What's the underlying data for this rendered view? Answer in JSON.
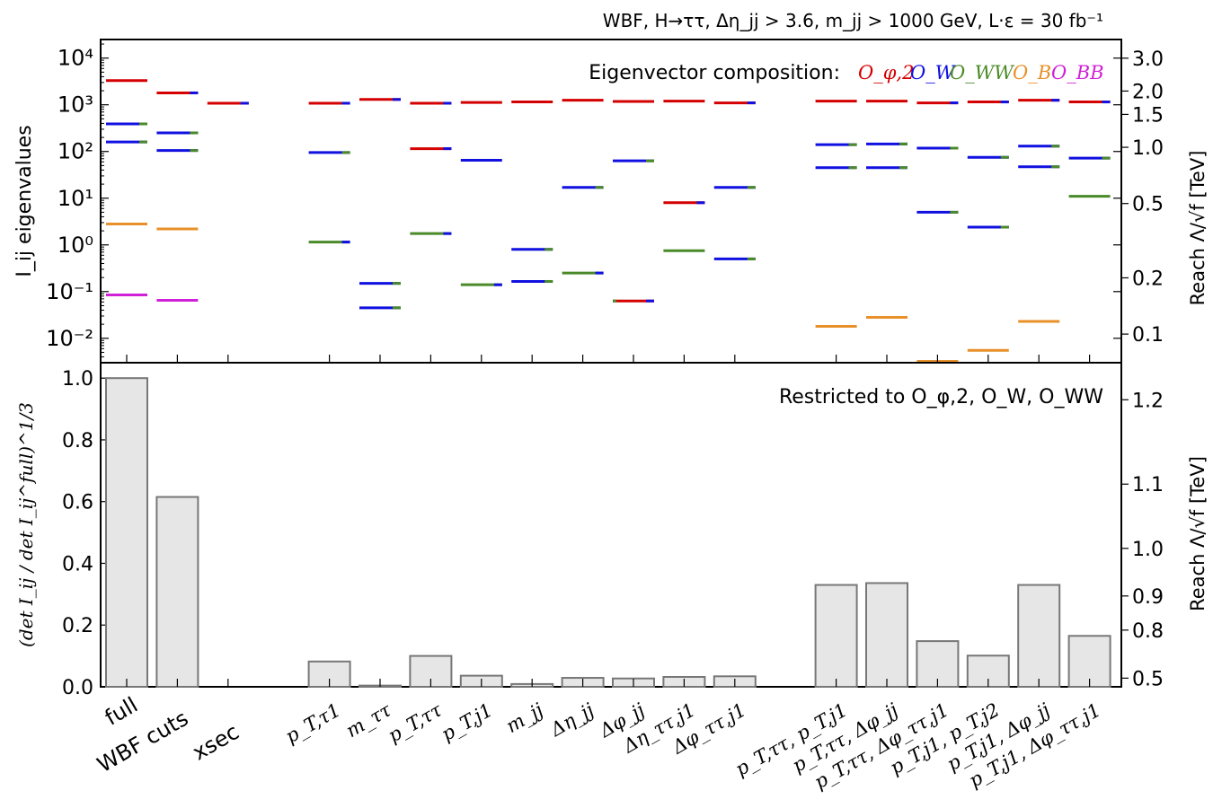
{
  "title": "WBF, H→ττ, Δη_jj > 3.6, m_jj > 1000 GeV, L·ε = 30 fb⁻¹",
  "colors": {
    "phi2": "#d40000",
    "W": "#1010e0",
    "WW": "#4a8a28",
    "B": "#e8902a",
    "BB": "#d020d8",
    "bar_fill": "#e6e6e6",
    "bar_edge": "#777777"
  },
  "chart_data": [
    {
      "type": "scatter",
      "name": "eigenvalues",
      "ylabel": "I_ij eigenvalues",
      "y2label": "Reach Λ/√f [TeV]",
      "yscale": "log",
      "ylim": [
        0.003,
        25000
      ],
      "ytick_labels": [
        "10⁻²",
        "10⁻¹",
        "10⁰",
        "10¹",
        "10²",
        "10³",
        "10⁴"
      ],
      "y2_ticks": [
        "3.0",
        "2.0",
        "1.5",
        "1.0",
        "0.5",
        "0.2",
        "0.1"
      ],
      "legend_text": "Eigenvector composition:",
      "legend_entries": [
        "O_φ,2",
        "O_W",
        "O_WW",
        "O_B",
        "O_BB"
      ],
      "legend_placement": "top-right",
      "categories": [
        "full",
        "WBF cuts",
        "xsec",
        "p_T,τ1",
        "m_ττ",
        "p_T,ττ",
        "p_T,j1",
        "m_jj",
        "Δη_jj",
        "Δφ_jj",
        "Δη_ττ,j1",
        "Δφ_ττ,j1",
        "p_T,ττ, p_T,j1",
        "p_T,ττ, Δφ_jj",
        "p_T,ττ, Δφ_ττ,j1",
        "p_T,j1, p_T,j2",
        "p_T,j1, Δφ_jj",
        "p_T,j1, Δφ_ττ,j1"
      ],
      "x_positions": [
        0,
        1,
        2,
        4,
        5,
        6,
        7,
        8,
        9,
        10,
        11,
        12,
        14,
        15,
        16,
        17,
        18,
        19
      ],
      "eigenvalues": [
        [
          {
            "v": 3300,
            "c": [
              "phi2"
            ]
          },
          {
            "v": 390,
            "c": [
              "W",
              "WW"
            ]
          },
          {
            "v": 160,
            "c": [
              "W",
              "WW"
            ]
          },
          {
            "v": 2.8,
            "c": [
              "B"
            ]
          },
          {
            "v": 0.085,
            "c": [
              "BB"
            ]
          }
        ],
        [
          {
            "v": 1800,
            "c": [
              "phi2",
              "W"
            ]
          },
          {
            "v": 250,
            "c": [
              "W",
              "WW"
            ]
          },
          {
            "v": 105,
            "c": [
              "W",
              "WW"
            ]
          },
          {
            "v": 2.2,
            "c": [
              "B"
            ]
          },
          {
            "v": 0.065,
            "c": [
              "BB"
            ]
          }
        ],
        [
          {
            "v": 1080,
            "c": [
              "phi2",
              "W"
            ]
          }
        ],
        [
          {
            "v": 1080,
            "c": [
              "phi2",
              "W"
            ]
          },
          {
            "v": 95,
            "c": [
              "W",
              "WW"
            ]
          },
          {
            "v": 1.15,
            "c": [
              "WW",
              "W"
            ]
          }
        ],
        [
          {
            "v": 1300,
            "c": [
              "phi2",
              "W"
            ]
          },
          {
            "v": 0.15,
            "c": [
              "W",
              "WW"
            ]
          },
          {
            "v": 0.045,
            "c": [
              "W",
              "WW"
            ]
          }
        ],
        [
          {
            "v": 1080,
            "c": [
              "phi2",
              "W"
            ]
          },
          {
            "v": 115,
            "c": [
              "phi2",
              "W"
            ]
          },
          {
            "v": 1.75,
            "c": [
              "WW",
              "W"
            ]
          }
        ],
        [
          {
            "v": 1120,
            "c": [
              "phi2"
            ]
          },
          {
            "v": 65,
            "c": [
              "W"
            ]
          },
          {
            "v": 0.14,
            "c": [
              "WW",
              "W"
            ]
          }
        ],
        [
          {
            "v": 1150,
            "c": [
              "phi2"
            ]
          },
          {
            "v": 0.8,
            "c": [
              "W",
              "WW"
            ]
          },
          {
            "v": 0.165,
            "c": [
              "W",
              "WW"
            ]
          }
        ],
        [
          {
            "v": 1250,
            "c": [
              "phi2"
            ]
          },
          {
            "v": 17,
            "c": [
              "W",
              "WW"
            ]
          },
          {
            "v": 0.25,
            "c": [
              "WW",
              "W"
            ]
          }
        ],
        [
          {
            "v": 1180,
            "c": [
              "phi2"
            ]
          },
          {
            "v": 63,
            "c": [
              "W",
              "WW"
            ]
          },
          {
            "v": 0.063,
            "c": [
              "phi2",
              "W",
              "WW"
            ]
          }
        ],
        [
          {
            "v": 1200,
            "c": [
              "phi2"
            ]
          },
          {
            "v": 8,
            "c": [
              "phi2",
              "W"
            ]
          },
          {
            "v": 0.75,
            "c": [
              "WW"
            ]
          }
        ],
        [
          {
            "v": 1100,
            "c": [
              "phi2",
              "W"
            ]
          },
          {
            "v": 17,
            "c": [
              "W",
              "WW"
            ]
          },
          {
            "v": 0.5,
            "c": [
              "W",
              "WW"
            ]
          }
        ],
        [
          {
            "v": 1200,
            "c": [
              "phi2"
            ]
          },
          {
            "v": 140,
            "c": [
              "W",
              "WW"
            ]
          },
          {
            "v": 45,
            "c": [
              "W",
              "WW"
            ]
          },
          {
            "v": 0.018,
            "c": [
              "B"
            ]
          }
        ],
        [
          {
            "v": 1200,
            "c": [
              "phi2"
            ]
          },
          {
            "v": 145,
            "c": [
              "W",
              "WW"
            ]
          },
          {
            "v": 45,
            "c": [
              "W",
              "WW"
            ]
          },
          {
            "v": 0.028,
            "c": [
              "B"
            ]
          }
        ],
        [
          {
            "v": 1100,
            "c": [
              "phi2",
              "W"
            ]
          },
          {
            "v": 118,
            "c": [
              "W",
              "WW"
            ]
          },
          {
            "v": 5,
            "c": [
              "W",
              "WW"
            ]
          },
          {
            "v": 0.0032,
            "c": [
              "B"
            ]
          }
        ],
        [
          {
            "v": 1150,
            "c": [
              "phi2",
              "W"
            ]
          },
          {
            "v": 75,
            "c": [
              "W",
              "WW"
            ]
          },
          {
            "v": 2.4,
            "c": [
              "W",
              "WW"
            ]
          },
          {
            "v": 0.0055,
            "c": [
              "B"
            ]
          }
        ],
        [
          {
            "v": 1250,
            "c": [
              "phi2",
              "W"
            ]
          },
          {
            "v": 130,
            "c": [
              "W",
              "WW"
            ]
          },
          {
            "v": 47,
            "c": [
              "W",
              "WW"
            ]
          },
          {
            "v": 0.023,
            "c": [
              "B"
            ]
          }
        ],
        [
          {
            "v": 1150,
            "c": [
              "phi2",
              "W"
            ]
          },
          {
            "v": 72,
            "c": [
              "W",
              "WW"
            ]
          },
          {
            "v": 11,
            "c": [
              "WW"
            ]
          }
        ]
      ]
    },
    {
      "type": "bar",
      "name": "restricted",
      "ylabel": "(det I_ij / det I_ij^full)^1/3",
      "y2label": "Reach Λ/√f [TeV]",
      "annotation": "Restricted to O_φ,2, O_W, O_WW",
      "ylim": [
        0,
        1.05
      ],
      "yticks": [
        0.0,
        0.2,
        0.4,
        0.6,
        0.8,
        1.0
      ],
      "ytick_labels": [
        "0.0",
        "0.2",
        "0.4",
        "0.6",
        "0.8",
        "1.0"
      ],
      "y2_ticks": [
        "1.2",
        "1.1",
        "1.0",
        "0.9",
        "0.8",
        "0.5"
      ],
      "categories": [
        "full",
        "WBF cuts",
        "xsec",
        "p_T,τ1",
        "m_ττ",
        "p_T,ττ",
        "p_T,j1",
        "m_jj",
        "Δη_jj",
        "Δφ_jj",
        "Δη_ττ,j1",
        "Δφ_ττ,j1",
        "p_T,ττ, p_T,j1",
        "p_T,ττ, Δφ_jj",
        "p_T,ττ, Δφ_ττ,j1",
        "p_T,j1, p_T,j2",
        "p_T,j1, Δφ_jj",
        "p_T,j1, Δφ_ττ,j1"
      ],
      "x_positions": [
        0,
        1,
        2,
        4,
        5,
        6,
        7,
        8,
        9,
        10,
        11,
        12,
        14,
        15,
        16,
        17,
        18,
        19
      ],
      "values": [
        1.0,
        0.615,
        0.0,
        0.082,
        0.004,
        0.1,
        0.036,
        0.009,
        0.029,
        0.027,
        0.032,
        0.034,
        0.33,
        0.336,
        0.148,
        0.101,
        0.33,
        0.165
      ]
    }
  ]
}
